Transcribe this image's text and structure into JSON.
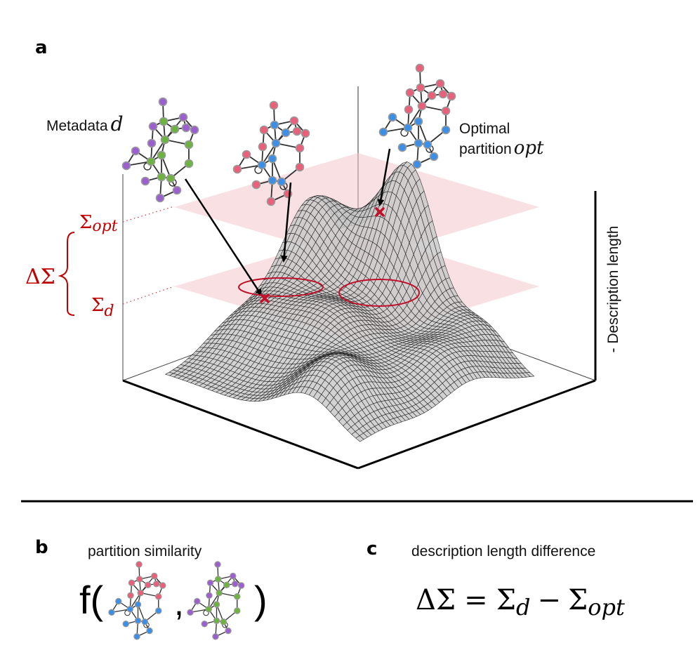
{
  "panels": {
    "a": {
      "label": "a",
      "metadata_label": "Metadata",
      "metadata_symbol": "d",
      "optimal_label_line1": "Optimal",
      "optimal_label_line2": "partition",
      "optimal_symbol": "opt",
      "axis_label": "- Description length",
      "sigma_opt": {
        "base": "Σ",
        "sub": "opt"
      },
      "sigma_d": {
        "base": "Σ",
        "sub": "d"
      },
      "delta_sigma": "ΔΣ"
    },
    "b": {
      "label": "b",
      "title": "partition similarity",
      "func_open": "f(",
      "comma": ",",
      "func_close": ")"
    },
    "c": {
      "label": "c",
      "title": "description length difference",
      "equation": {
        "lhs": "ΔΣ",
        "eq": "=",
        "t1": "Σ",
        "t1_sub": "d",
        "minus": "−",
        "t2": "Σ",
        "t2_sub": "opt"
      }
    }
  },
  "colors": {
    "red_accent": "#c00000",
    "plane_fill": "#f3c4c8",
    "surface_fill": "#c8c8c8",
    "node_purple": "#9b5fcf",
    "node_green": "#6db33f",
    "node_pink": "#ea5f7a",
    "node_blue": "#3b8fe6",
    "node_stroke": "#9a9a9a",
    "edge": "#333333"
  },
  "networks": {
    "metadata": {
      "name": "metadata-network",
      "colors": [
        "purple",
        "green"
      ]
    },
    "middle": {
      "name": "intermediate-partition-network",
      "colors": [
        "pink",
        "blue"
      ]
    },
    "optimal": {
      "name": "optimal-partition-network",
      "colors": [
        "pink",
        "blue"
      ]
    }
  }
}
